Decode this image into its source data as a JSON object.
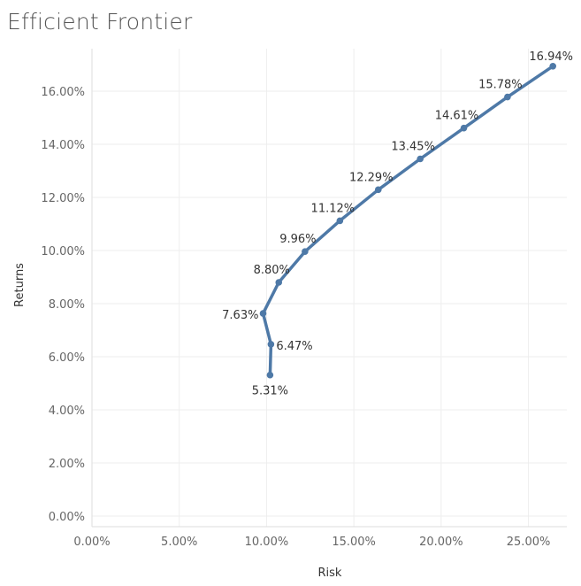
{
  "chart_data": {
    "type": "line",
    "title": "Efficient Frontier",
    "xlabel": "Risk",
    "ylabel": "Returns",
    "xlim": [
      0,
      27.2
    ],
    "ylim": [
      -0.4,
      17.6
    ],
    "grid": true,
    "x_ticks": [
      "0.00%",
      "5.00%",
      "10.00%",
      "15.00%",
      "20.00%",
      "25.00%"
    ],
    "x_tick_values": [
      0,
      5,
      10,
      15,
      20,
      25
    ],
    "y_ticks": [
      "0.00%",
      "2.00%",
      "4.00%",
      "6.00%",
      "8.00%",
      "10.00%",
      "12.00%",
      "14.00%",
      "16.00%"
    ],
    "y_tick_values": [
      0,
      2,
      4,
      6,
      8,
      10,
      12,
      14,
      16
    ],
    "color": "#4e79a7",
    "points": [
      {
        "x": 10.2,
        "y": 5.31,
        "label": "5.31%",
        "label_pos": "below"
      },
      {
        "x": 10.25,
        "y": 6.47,
        "label": "6.47%",
        "label_pos": "right"
      },
      {
        "x": 9.8,
        "y": 7.63,
        "label": "7.63%",
        "label_pos": "left"
      },
      {
        "x": 10.7,
        "y": 8.8,
        "label": "8.80%",
        "label_pos": "above-left"
      },
      {
        "x": 12.2,
        "y": 9.96,
        "label": "9.96%",
        "label_pos": "above-left"
      },
      {
        "x": 14.2,
        "y": 11.12,
        "label": "11.12%",
        "label_pos": "above-left"
      },
      {
        "x": 16.4,
        "y": 12.29,
        "label": "12.29%",
        "label_pos": "above-left"
      },
      {
        "x": 18.8,
        "y": 13.45,
        "label": "13.45%",
        "label_pos": "above-left"
      },
      {
        "x": 21.3,
        "y": 14.61,
        "label": "14.61%",
        "label_pos": "above-left"
      },
      {
        "x": 23.8,
        "y": 15.78,
        "label": "15.78%",
        "label_pos": "above-left"
      },
      {
        "x": 26.4,
        "y": 16.94,
        "label": "16.94%",
        "label_pos": "above"
      }
    ]
  }
}
